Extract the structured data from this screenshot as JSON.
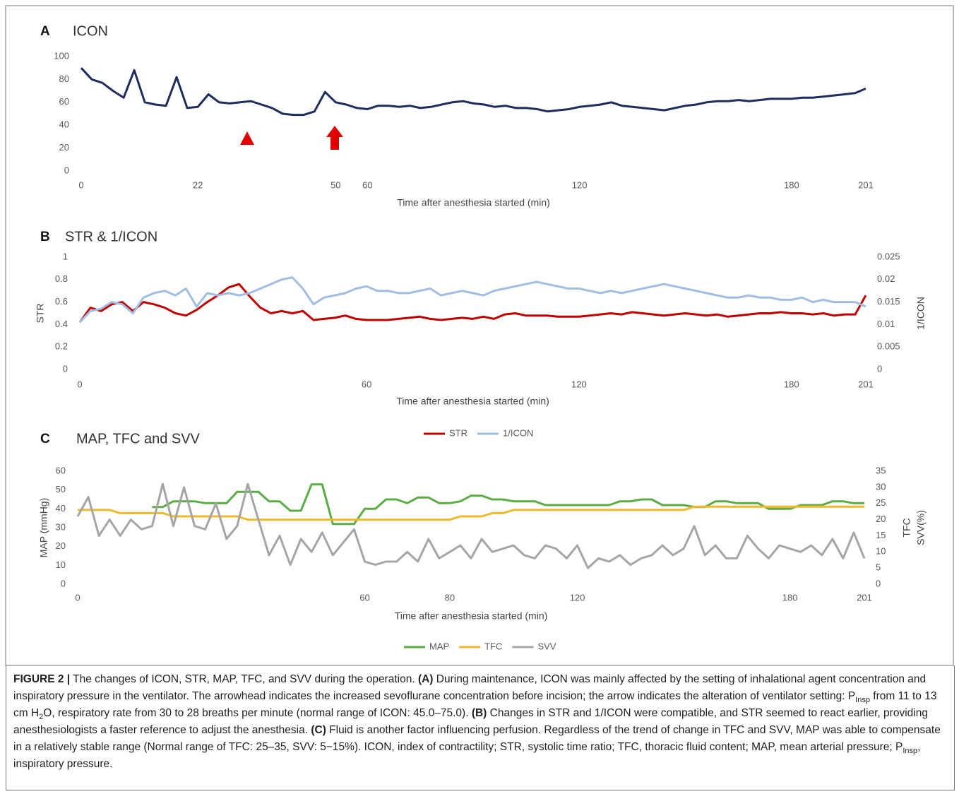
{
  "chart_data": [
    {
      "type": "line",
      "panel": "A",
      "title": "ICON",
      "x_label": "Time after anesthesia started (min)",
      "color": "#1f2d5c",
      "categories": [
        "0",
        null,
        null,
        null,
        null,
        null,
        null,
        null,
        null,
        null,
        null,
        "22",
        null,
        null,
        null,
        null,
        null,
        null,
        null,
        null,
        null,
        null,
        null,
        null,
        "50",
        null,
        null,
        "60",
        null,
        null,
        null,
        null,
        null,
        null,
        null,
        null,
        null,
        null,
        null,
        null,
        null,
        null,
        null,
        null,
        null,
        null,
        null,
        "120",
        null,
        null,
        null,
        null,
        null,
        null,
        null,
        null,
        null,
        null,
        null,
        null,
        null,
        null,
        null,
        null,
        null,
        null,
        null,
        "180",
        null,
        null,
        null,
        null,
        null,
        null,
        "201"
      ],
      "values": [
        90,
        80,
        77,
        70,
        64,
        88,
        60,
        58,
        57,
        82,
        55,
        56,
        67,
        60,
        59,
        60,
        61,
        58,
        55,
        50,
        49,
        49,
        52,
        69,
        60,
        58,
        55,
        54,
        57,
        57,
        56,
        57,
        55,
        56,
        58,
        60,
        61,
        59,
        58,
        56,
        57,
        55,
        55,
        54,
        52,
        53,
        54,
        56,
        57,
        58,
        60,
        57,
        56,
        55,
        54,
        53,
        55,
        57,
        58,
        60,
        61,
        61,
        62,
        61,
        62,
        63,
        63,
        63,
        64,
        64,
        65,
        66,
        67,
        68,
        72
      ],
      "ylim": [
        0,
        100
      ],
      "yticks": [
        0,
        20,
        40,
        60,
        80,
        100
      ]
    },
    {
      "type": "line",
      "panel": "B",
      "title": "STR & 1/ICON",
      "x_label": "Time after anesthesia started (min)",
      "y_label": "STR",
      "y2_label": [
        "1/ICON"
      ],
      "categories": [
        "0",
        null,
        null,
        null,
        null,
        null,
        null,
        null,
        null,
        null,
        null,
        null,
        null,
        null,
        null,
        null,
        null,
        null,
        null,
        null,
        null,
        null,
        null,
        null,
        null,
        null,
        null,
        "60",
        null,
        null,
        null,
        null,
        null,
        null,
        null,
        null,
        null,
        null,
        null,
        null,
        null,
        null,
        null,
        null,
        null,
        null,
        null,
        "120",
        null,
        null,
        null,
        null,
        null,
        null,
        null,
        null,
        null,
        null,
        null,
        null,
        null,
        null,
        null,
        null,
        null,
        null,
        null,
        "180",
        null,
        null,
        null,
        null,
        null,
        null,
        "201"
      ],
      "series": [
        {
          "name": "STR",
          "color": "#c00000",
          "values": [
            0.42,
            0.55,
            0.52,
            0.58,
            0.6,
            0.52,
            0.6,
            0.58,
            0.55,
            0.5,
            0.48,
            0.53,
            0.6,
            0.66,
            0.73,
            0.76,
            0.65,
            0.55,
            0.5,
            0.52,
            0.5,
            0.52,
            0.44,
            0.45,
            0.46,
            0.48,
            0.45,
            0.44,
            0.44,
            0.44,
            0.45,
            0.46,
            0.47,
            0.45,
            0.44,
            0.45,
            0.46,
            0.45,
            0.47,
            0.45,
            0.49,
            0.5,
            0.48,
            0.48,
            0.48,
            0.47,
            0.47,
            0.47,
            0.48,
            0.49,
            0.5,
            0.49,
            0.51,
            0.5,
            0.49,
            0.48,
            0.49,
            0.5,
            0.49,
            0.48,
            0.49,
            0.47,
            0.48,
            0.49,
            0.5,
            0.5,
            0.51,
            0.5,
            0.5,
            0.49,
            0.5,
            0.48,
            0.49,
            0.49,
            0.66
          ]
        },
        {
          "name": "1/ICON",
          "color": "#a0bde3",
          "axis": "y2",
          "values": [
            0.0105,
            0.013,
            0.0135,
            0.015,
            0.0145,
            0.0125,
            0.016,
            0.017,
            0.0175,
            0.0165,
            0.018,
            0.014,
            0.017,
            0.0165,
            0.017,
            0.0165,
            0.017,
            0.018,
            0.019,
            0.02,
            0.0205,
            0.018,
            0.0145,
            0.016,
            0.0165,
            0.017,
            0.018,
            0.0185,
            0.0175,
            0.0175,
            0.017,
            0.017,
            0.0175,
            0.018,
            0.0165,
            0.017,
            0.0175,
            0.017,
            0.0165,
            0.0175,
            0.018,
            0.0185,
            0.019,
            0.0195,
            0.019,
            0.0185,
            0.018,
            0.018,
            0.0175,
            0.017,
            0.0175,
            0.017,
            0.0175,
            0.018,
            0.0185,
            0.019,
            0.0185,
            0.018,
            0.0175,
            0.017,
            0.0165,
            0.016,
            0.016,
            0.0165,
            0.016,
            0.016,
            0.0155,
            0.0155,
            0.016,
            0.015,
            0.0155,
            0.015,
            0.015,
            0.015,
            0.014
          ]
        }
      ],
      "ylim": [
        0,
        1
      ],
      "yticks": [
        0,
        0.2,
        0.4,
        0.6,
        0.8,
        1
      ],
      "y2lim": [
        0,
        0.025
      ],
      "y2ticks": [
        0,
        0.005,
        0.01,
        0.015,
        0.02,
        0.025
      ]
    },
    {
      "type": "line",
      "panel": "C",
      "title": "MAP, TFC and SVV",
      "x_label": "Time after anesthesia started (min)",
      "y_label": "MAP (mmHg)",
      "y2_label": [
        "TFC",
        "SVV(%)"
      ],
      "categories": [
        "0",
        null,
        null,
        null,
        null,
        null,
        null,
        null,
        null,
        null,
        null,
        null,
        null,
        null,
        null,
        null,
        null,
        null,
        null,
        null,
        null,
        null,
        null,
        null,
        null,
        null,
        null,
        "60",
        null,
        null,
        null,
        null,
        null,
        null,
        null,
        "80",
        null,
        null,
        null,
        null,
        null,
        null,
        null,
        null,
        null,
        null,
        null,
        "120",
        null,
        null,
        null,
        null,
        null,
        null,
        null,
        null,
        null,
        null,
        null,
        null,
        null,
        null,
        null,
        null,
        null,
        null,
        null,
        "180",
        null,
        null,
        null,
        null,
        null,
        null,
        "201"
      ],
      "series": [
        {
          "name": "MAP",
          "color": "#5cac46",
          "values": [
            null,
            null,
            null,
            null,
            null,
            null,
            null,
            41,
            41,
            44,
            44,
            44,
            43,
            43,
            43,
            49,
            49,
            49,
            44,
            44,
            39,
            39,
            53,
            53,
            32,
            32,
            32,
            40,
            40,
            45,
            45,
            43,
            46,
            46,
            43,
            43,
            44,
            47,
            47,
            45,
            45,
            44,
            44,
            44,
            42,
            42,
            42,
            42,
            42,
            42,
            42,
            44,
            44,
            45,
            45,
            42,
            42,
            42,
            41,
            41,
            44,
            44,
            43,
            43,
            43,
            40,
            40,
            40,
            42,
            42,
            42,
            44,
            44,
            43,
            43
          ]
        },
        {
          "name": "TFC",
          "color": "#f0b92a",
          "axis": "y2",
          "values": [
            23,
            23,
            23,
            23,
            22,
            22,
            22,
            22,
            22,
            21,
            21,
            21,
            21,
            21,
            21,
            21,
            20,
            20,
            20,
            20,
            20,
            20,
            20,
            20,
            20,
            20,
            20,
            20,
            20,
            20,
            20,
            20,
            20,
            20,
            20,
            20,
            21,
            21,
            21,
            22,
            22,
            23,
            23,
            23,
            23,
            23,
            23,
            23,
            23,
            23,
            23,
            23,
            23,
            23,
            23,
            23,
            23,
            23,
            24,
            24,
            24,
            24,
            24,
            24,
            24,
            24,
            24,
            24,
            24,
            24,
            24,
            24,
            24,
            24,
            24
          ]
        },
        {
          "name": "SVV",
          "color": "#a5a5a5",
          "axis": "y2",
          "values": [
            21,
            27,
            15,
            20,
            15,
            20,
            17,
            18,
            31,
            18,
            30,
            18,
            17,
            25,
            14,
            18,
            31,
            20,
            9,
            15,
            6,
            14,
            10,
            16,
            9,
            13,
            17,
            7,
            6,
            7,
            7,
            10,
            7,
            14,
            8,
            10,
            12,
            8,
            14,
            10,
            11,
            12,
            9,
            8,
            12,
            11,
            8,
            12,
            5,
            8,
            7,
            9,
            6,
            8,
            9,
            12,
            9,
            11,
            18,
            9,
            12,
            8,
            8,
            15,
            11,
            8,
            12,
            11,
            10,
            12,
            9,
            14,
            8,
            16,
            8
          ]
        }
      ],
      "ylim": [
        0,
        60
      ],
      "yticks": [
        0,
        10,
        20,
        30,
        40,
        50,
        60
      ],
      "y2lim": [
        0,
        35
      ],
      "y2ticks": [
        0,
        5,
        10,
        15,
        20,
        25,
        30,
        35
      ]
    }
  ],
  "caption": [
    {
      "text": "FIGURE 2 |",
      "style": "b"
    },
    {
      "text": " The changes of ICON, STR, MAP, TFC, and SVV during the operation. "
    },
    {
      "text": "(A)",
      "style": "b"
    },
    {
      "text": " During maintenance, ICON was mainly affected by the setting of inhalational agent concentration and inspiratory pressure in the ventilator. The arrowhead indicates the increased sevoflurane concentration before incision; the arrow indicates the alteration of ventilator setting: P"
    },
    {
      "text": "Insp",
      "style": "sub"
    },
    {
      "text": " from 11 to 13 cm H"
    },
    {
      "text": "2",
      "style": "sub"
    },
    {
      "text": "O, respiratory rate from 30 to 28 breaths per minute (normal range of ICON: 45.0–75.0). "
    },
    {
      "text": "(B)",
      "style": "b"
    },
    {
      "text": " Changes in STR and 1/ICON were compatible, and STR seemed to react earlier, providing anesthesiologists a faster reference to adjust the anesthesia. "
    },
    {
      "text": "(C)",
      "style": "b"
    },
    {
      "text": " Fluid is another factor influencing perfusion. Regardless of the trend of change in TFC and SVV, MAP was able to compensate in a relatively stable range (Normal range of TFC: 25–35, SVV: 5−15%). ICON, index of contractility; STR, systolic time ratio; TFC, thoracic fluid content; MAP, mean arterial pressure; P"
    },
    {
      "text": "Insp",
      "style": "sub"
    },
    {
      "text": ", inspiratory pressure."
    }
  ]
}
